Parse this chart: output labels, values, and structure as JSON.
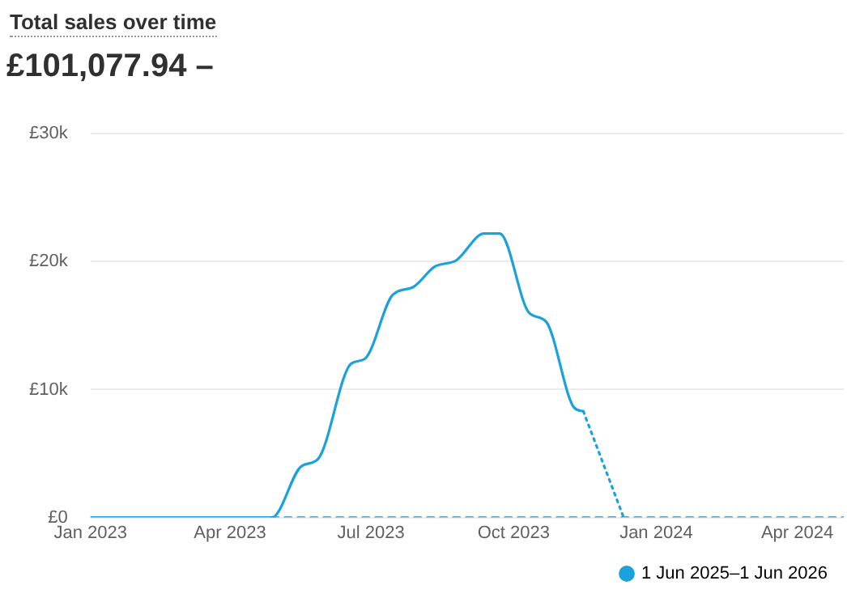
{
  "chart_data": {
    "type": "line",
    "title": "Total sales over time",
    "subtitle": "£101,077.94 –",
    "series": [
      {
        "name": "1 Jun 2025–1 Jun 2026",
        "color": "#1ba1dc",
        "x": [
          "2023-01-01",
          "2023-04-28",
          "2023-05-17",
          "2023-05-28",
          "2023-06-18",
          "2023-06-27",
          "2023-07-15",
          "2023-07-28",
          "2023-08-11",
          "2023-08-25",
          "2023-09-12",
          "2023-09-22",
          "2023-10-11",
          "2023-10-22",
          "2023-11-09",
          "2023-11-15"
        ],
        "values": [
          0,
          0,
          4000,
          4600,
          12000,
          12400,
          17400,
          18000,
          19600,
          20100,
          22200,
          22200,
          16000,
          15300,
          8600,
          8300
        ]
      },
      {
        "color": "#1ba1dc",
        "line_style": "dotted",
        "x": [
          "2023-11-15",
          "2023-12-11"
        ],
        "values": [
          8300,
          0
        ]
      },
      {
        "color": "#5aa0c4",
        "line_style": "dashed",
        "x": [
          "2023-04-28",
          "2024-05-01"
        ],
        "values": [
          0,
          0
        ]
      }
    ],
    "xlim": [
      "2023-01-01",
      "2024-05-01"
    ],
    "xticks": [
      {
        "value": "2023-01-01",
        "label": "Jan 2023"
      },
      {
        "value": "2023-04-01",
        "label": "Apr 2023"
      },
      {
        "value": "2023-07-01",
        "label": "Jul 2023"
      },
      {
        "value": "2023-10-01",
        "label": "Oct 2023"
      },
      {
        "value": "2024-01-01",
        "label": "Jan 2024"
      },
      {
        "value": "2024-04-01",
        "label": "Apr 2024"
      }
    ],
    "ylim": [
      0,
      30000
    ],
    "yticks": [
      {
        "value": 0,
        "label": "£0"
      },
      {
        "value": 10000,
        "label": "£10k"
      },
      {
        "value": 20000,
        "label": "£20k"
      },
      {
        "value": 30000,
        "label": "£30k"
      }
    ],
    "grid": "y",
    "legend": "bottom right",
    "marker": "none",
    "line_style": "solid"
  }
}
